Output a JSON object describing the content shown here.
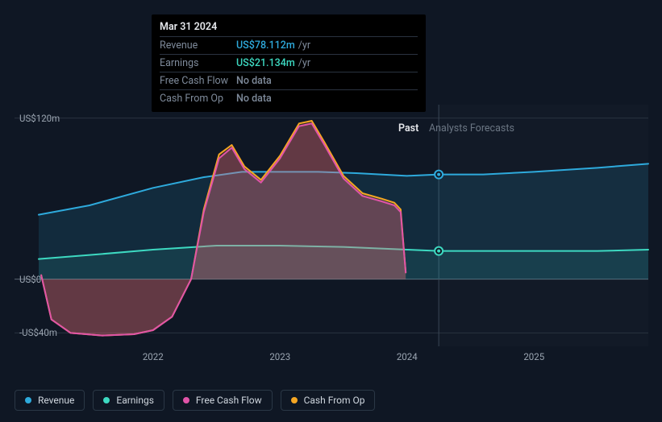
{
  "tooltip": {
    "date": "Mar 31 2024",
    "rows": [
      {
        "label": "Revenue",
        "value": "US$78.112m",
        "unit": "/yr",
        "color": "#2eaadc"
      },
      {
        "label": "Earnings",
        "value": "US$21.134m",
        "unit": "/yr",
        "color": "#3dd9c1"
      },
      {
        "label": "Free Cash Flow",
        "value": "No data",
        "unit": "",
        "color": "#7e8a9a"
      },
      {
        "label": "Cash From Op",
        "value": "No data",
        "unit": "",
        "color": "#7e8a9a"
      }
    ]
  },
  "period": {
    "past": "Past",
    "forecast": "Analysts Forecasts"
  },
  "legend": [
    {
      "label": "Revenue",
      "color": "#2eaadc"
    },
    {
      "label": "Earnings",
      "color": "#3dd9c1"
    },
    {
      "label": "Free Cash Flow",
      "color": "#e054a8"
    },
    {
      "label": "Cash From Op",
      "color": "#f5a623"
    }
  ],
  "chart": {
    "background": "#0f1724",
    "grid_color": "#2a3340",
    "yticks": [
      {
        "label": "US$120m",
        "value": 120
      },
      {
        "label": "US$0",
        "value": 0
      },
      {
        "label": "-US$40m",
        "value": -40
      }
    ],
    "xticks": [
      {
        "label": "2022",
        "value": 2022
      },
      {
        "label": "2023",
        "value": 2023
      },
      {
        "label": "2024",
        "value": 2024
      },
      {
        "label": "2025",
        "value": 2025
      }
    ],
    "xrange": [
      2021.1,
      2025.9
    ],
    "yrange": [
      -50,
      130
    ],
    "boundary_x": 2024.25,
    "marker_x": 2024.25,
    "series": {
      "revenue": {
        "color": "#2eaadc",
        "fill": "rgba(46,170,220,0.14)",
        "stroke_width": 2,
        "points": [
          [
            2021.1,
            48
          ],
          [
            2021.5,
            55
          ],
          [
            2022.0,
            68
          ],
          [
            2022.4,
            76
          ],
          [
            2022.7,
            80
          ],
          [
            2023.0,
            80
          ],
          [
            2023.3,
            80
          ],
          [
            2023.6,
            79
          ],
          [
            2024.0,
            77
          ],
          [
            2024.25,
            78
          ],
          [
            2024.6,
            78
          ],
          [
            2025.0,
            80
          ],
          [
            2025.5,
            83
          ],
          [
            2025.9,
            86
          ]
        ],
        "marker_y": 78
      },
      "earnings": {
        "color": "#3dd9c1",
        "fill": "rgba(61,217,193,0.10)",
        "stroke_width": 2,
        "points": [
          [
            2021.1,
            15
          ],
          [
            2021.5,
            18
          ],
          [
            2022.0,
            22
          ],
          [
            2022.5,
            25
          ],
          [
            2023.0,
            25
          ],
          [
            2023.5,
            24
          ],
          [
            2024.0,
            22
          ],
          [
            2024.25,
            21
          ],
          [
            2024.6,
            21
          ],
          [
            2025.0,
            21
          ],
          [
            2025.5,
            21
          ],
          [
            2025.9,
            22
          ]
        ],
        "marker_y": 21
      },
      "fcf": {
        "color": "#e054a8",
        "fill": "rgba(224,84,168,0.25)",
        "stroke_width": 2,
        "points": [
          [
            2021.12,
            3
          ],
          [
            2021.2,
            -30
          ],
          [
            2021.35,
            -40
          ],
          [
            2021.6,
            -42
          ],
          [
            2021.85,
            -41
          ],
          [
            2022.0,
            -38
          ],
          [
            2022.15,
            -28
          ],
          [
            2022.3,
            0
          ],
          [
            2022.4,
            50
          ],
          [
            2022.52,
            90
          ],
          [
            2022.62,
            98
          ],
          [
            2022.72,
            82
          ],
          [
            2022.85,
            72
          ],
          [
            2023.0,
            90
          ],
          [
            2023.15,
            114
          ],
          [
            2023.25,
            116
          ],
          [
            2023.35,
            100
          ],
          [
            2023.5,
            75
          ],
          [
            2023.65,
            62
          ],
          [
            2023.8,
            58
          ],
          [
            2023.9,
            55
          ],
          [
            2023.95,
            50
          ],
          [
            2023.99,
            5
          ]
        ],
        "marker_y": null
      },
      "cfo": {
        "color": "#f5a623",
        "fill": "rgba(245,166,35,0.18)",
        "stroke_width": 2,
        "points": [
          [
            2021.12,
            3
          ],
          [
            2021.2,
            -30
          ],
          [
            2021.35,
            -40
          ],
          [
            2021.6,
            -42
          ],
          [
            2021.85,
            -41
          ],
          [
            2022.0,
            -38
          ],
          [
            2022.15,
            -28
          ],
          [
            2022.3,
            0
          ],
          [
            2022.4,
            52
          ],
          [
            2022.52,
            93
          ],
          [
            2022.62,
            100
          ],
          [
            2022.72,
            84
          ],
          [
            2022.85,
            74
          ],
          [
            2023.0,
            92
          ],
          [
            2023.15,
            116
          ],
          [
            2023.25,
            118
          ],
          [
            2023.35,
            102
          ],
          [
            2023.5,
            77
          ],
          [
            2023.65,
            64
          ],
          [
            2023.8,
            60
          ],
          [
            2023.9,
            57
          ],
          [
            2023.95,
            52
          ],
          [
            2023.99,
            5
          ]
        ],
        "marker_y": null
      }
    }
  }
}
